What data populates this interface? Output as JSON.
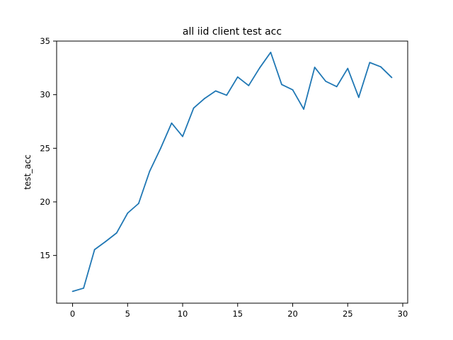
{
  "chart_data": {
    "type": "line",
    "title": "all iid client test acc",
    "xlabel": "",
    "ylabel": "test_acc",
    "xlim": [
      -1.45,
      30.45
    ],
    "ylim": [
      10.55,
      35.0
    ],
    "xticks": [
      0,
      5,
      10,
      15,
      20,
      25,
      30
    ],
    "yticks": [
      15,
      20,
      25,
      30,
      35
    ],
    "grid": false,
    "line_color": "#1f77b4",
    "series": [
      {
        "x": [
          0,
          1,
          2,
          3,
          4,
          5,
          6,
          7,
          8,
          9,
          10,
          11,
          12,
          13,
          14,
          15,
          16,
          17,
          18,
          19,
          20,
          21,
          22,
          23,
          24,
          25,
          26,
          27,
          28,
          29
        ],
        "values": [
          11.65,
          11.95,
          15.55,
          16.3,
          17.1,
          18.95,
          19.85,
          22.85,
          25.0,
          27.35,
          26.1,
          28.75,
          29.65,
          30.35,
          29.95,
          31.65,
          30.85,
          32.5,
          33.95,
          30.95,
          30.45,
          28.65,
          32.55,
          31.25,
          30.75,
          32.45,
          29.75,
          33.0,
          32.6,
          31.6
        ]
      }
    ]
  }
}
